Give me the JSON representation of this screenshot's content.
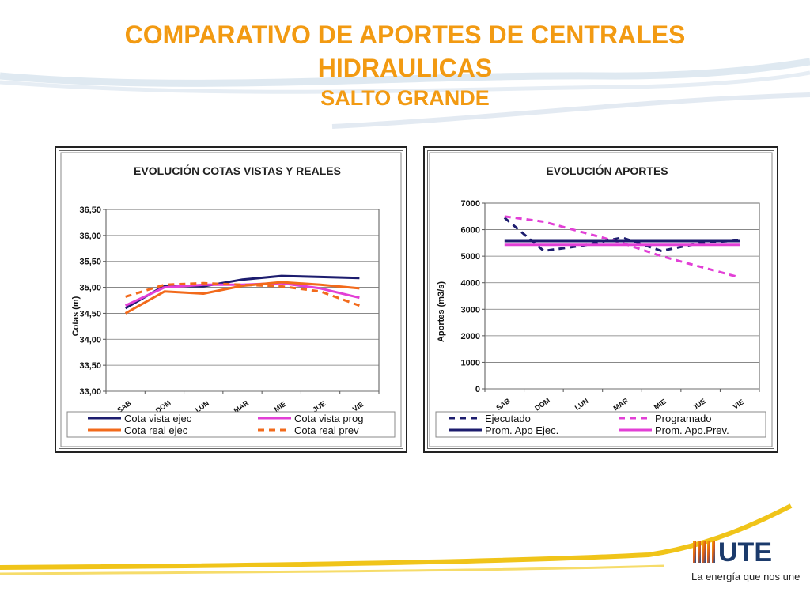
{
  "slide": {
    "title_line1": "COMPARATIVO DE APORTES DE CENTRALES",
    "title_line2": "HIDRAULICAS",
    "subtitle": "SALTO GRANDE",
    "brand_text": "UTE",
    "tagline": "La energía que nos une",
    "accent_color": "#f29a12"
  },
  "chart_data": [
    {
      "type": "line",
      "title": "EVOLUCIÓN  COTAS VISTAS Y REALES",
      "xlabel": "",
      "ylabel": "Cotas (m)",
      "categories": [
        "SAB",
        "DOM",
        "LUN",
        "MAR",
        "MIE",
        "JUE",
        "VIE"
      ],
      "ylim": [
        33.0,
        36.5
      ],
      "yticks": [
        "36,50",
        "36,00",
        "35,50",
        "35,00",
        "34,50",
        "34,00",
        "33,50",
        "33,00"
      ],
      "grid": true,
      "legend_position": "bottom",
      "series": [
        {
          "name": "Cota vista ejec",
          "color": "#1c1c6e",
          "dash": "solid",
          "values": [
            34.6,
            35.03,
            35.02,
            35.15,
            35.22,
            35.2,
            35.18
          ]
        },
        {
          "name": "Cota vista prog",
          "color": "#e23fd6",
          "dash": "solid",
          "values": [
            34.65,
            35.0,
            35.05,
            35.05,
            35.08,
            34.98,
            34.8
          ]
        },
        {
          "name": "Cota real ejec",
          "color": "#f26a1b",
          "dash": "solid",
          "values": [
            34.5,
            34.92,
            34.88,
            35.03,
            35.1,
            35.05,
            34.98
          ]
        },
        {
          "name": "Cota real prev",
          "color": "#f26a1b",
          "dash": "dash",
          "values": [
            34.82,
            35.05,
            35.08,
            35.05,
            35.02,
            34.92,
            34.65
          ]
        }
      ]
    },
    {
      "type": "line",
      "title": "EVOLUCIÓN  APORTES",
      "xlabel": "",
      "ylabel": "Aportes (m3/s)",
      "categories": [
        "SAB",
        "DOM",
        "LUN",
        "MAR",
        "MIE",
        "JUE",
        "VIE"
      ],
      "ylim": [
        0,
        7000
      ],
      "yticks": [
        "7000",
        "6000",
        "5000",
        "4000",
        "3000",
        "2000",
        "1000",
        "0"
      ],
      "grid": true,
      "legend_position": "bottom",
      "series": [
        {
          "name": "Ejecutado",
          "color": "#1c1c6e",
          "dash": "dash",
          "values": [
            6450,
            5200,
            5400,
            5700,
            5200,
            5500,
            5600
          ]
        },
        {
          "name": "Programado",
          "color": "#e23fd6",
          "dash": "dash",
          "values": [
            6500,
            6300,
            5900,
            5500,
            5000,
            4600,
            4200
          ]
        },
        {
          "name": "Prom. Apo Ejec.",
          "color": "#1c1c6e",
          "dash": "solid",
          "values": [
            5570,
            5570,
            5570,
            5570,
            5570,
            5570,
            5570
          ]
        },
        {
          "name": "Prom. Apo.Prev.",
          "color": "#e23fd6",
          "dash": "solid",
          "values": [
            5430,
            5430,
            5430,
            5430,
            5430,
            5430,
            5430
          ]
        }
      ]
    }
  ]
}
